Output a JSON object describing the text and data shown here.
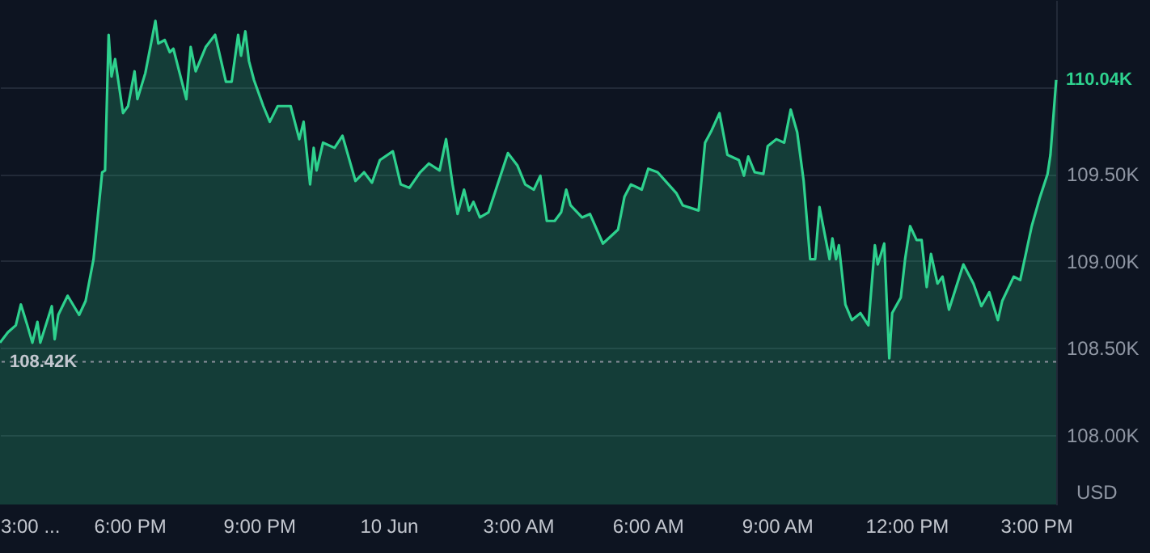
{
  "chart_data": {
    "type": "area",
    "ylabel": "USD",
    "x": [
      "--06-09T15:00",
      "--06-09T15:11",
      "--06-09T15:22",
      "--06-09T15:29",
      "--06-09T15:38",
      "--06-09T15:45",
      "--06-09T15:52",
      "--06-09T15:56",
      "--06-09T16:12",
      "--06-09T16:16",
      "--06-09T16:21",
      "--06-09T16:34",
      "--06-09T16:50",
      "--06-09T16:59",
      "--06-09T17:10",
      "--06-09T17:22",
      "--06-09T17:26",
      "--06-09T17:31",
      "--06-09T17:35",
      "--06-09T17:40",
      "--06-09T17:51",
      "--06-09T17:58",
      "--06-09T18:07",
      "--06-09T18:11",
      "--06-09T18:22",
      "--06-09T18:36",
      "--06-09T18:40",
      "--06-09T18:49",
      "--06-09T18:56",
      "--06-09T19:01",
      "--06-09T19:19",
      "--06-09T19:25",
      "--06-09T19:32",
      "--06-09T19:46",
      "--06-09T19:59",
      "--06-09T20:14",
      "--06-09T20:22",
      "--06-09T20:31",
      "--06-09T20:35",
      "--06-09T20:41",
      "--06-09T20:46",
      "--06-09T20:53",
      "--06-09T21:06",
      "--06-09T21:15",
      "--06-09T21:26",
      "--06-09T21:44",
      "--06-09T21:56",
      "--06-09T22:02",
      "--06-09T22:11",
      "--06-09T22:16",
      "--06-09T22:20",
      "--06-09T22:29",
      "--06-09T22:45",
      "--06-09T22:56",
      "--06-09T23:14",
      "--06-09T23:26",
      "--06-09T23:37",
      "--06-09T23:48",
      "--06-10T00:06",
      "--06-10T00:17",
      "--06-10T00:29",
      "--06-10T00:44",
      "--06-10T00:56",
      "--06-10T01:11",
      "--06-10T01:20",
      "--06-10T01:29",
      "--06-10T01:36",
      "--06-10T01:45",
      "--06-10T01:52",
      "--06-10T01:58",
      "--06-10T02:07",
      "--06-10T02:19",
      "--06-10T02:30",
      "--06-10T02:46",
      "--06-10T02:59",
      "--06-10T03:10",
      "--06-10T03:22",
      "--06-10T03:31",
      "--06-10T03:40",
      "--06-10T03:51",
      "--06-10T04:00",
      "--06-10T04:07",
      "--06-10T04:13",
      "--06-10T04:29",
      "--06-10T04:40",
      "--06-10T04:58",
      "--06-10T05:19",
      "--06-10T05:28",
      "--06-10T05:37",
      "--06-10T05:52",
      "--06-10T06:01",
      "--06-10T06:14",
      "--06-10T06:40",
      "--06-10T06:49",
      "--06-10T07:11",
      "--06-10T07:20",
      "--06-10T07:29",
      "--06-10T07:40",
      "--06-10T07:51",
      "--06-10T08:07",
      "--06-10T08:14",
      "--06-10T08:20",
      "--06-10T08:29",
      "--06-10T08:41",
      "--06-10T08:47",
      "--06-10T08:59",
      "--06-10T09:10",
      "--06-10T09:19",
      "--06-10T09:28",
      "--06-10T09:37",
      "--06-10T09:46",
      "--06-10T09:53",
      "--06-10T09:59",
      "--06-10T10:13",
      "--06-10T10:17",
      "--06-10T10:22",
      "--06-10T10:26",
      "--06-10T10:35",
      "--06-10T10:44",
      "--06-10T10:56",
      "--06-10T11:07",
      "--06-10T11:16",
      "--06-10T11:20",
      "--06-10T11:29",
      "--06-10T11:36",
      "--06-10T11:40",
      "--06-10T11:52",
      "--06-10T11:58",
      "--06-10T12:05",
      "--06-10T12:14",
      "--06-10T12:21",
      "--06-10T12:28",
      "--06-10T12:34",
      "--06-10T12:43",
      "--06-10T12:50",
      "--06-10T12:59",
      "--06-10T13:19",
      "--06-10T13:33",
      "--06-10T13:44",
      "--06-10T13:55",
      "--06-10T14:07",
      "--06-10T14:13",
      "--06-10T14:29",
      "--06-10T14:38",
      "--06-10T14:54",
      "--06-10T15:05",
      "--06-10T15:16",
      "--06-10T15:20",
      "--06-10T15:28"
    ],
    "series": [
      {
        "color": "#2ed18e",
        "values": [
          108.53,
          108.59,
          108.63,
          108.75,
          108.63,
          108.53,
          108.65,
          108.53,
          108.74,
          108.55,
          108.69,
          108.8,
          108.69,
          108.77,
          109.01,
          109.51,
          109.52,
          110.3,
          110.06,
          110.16,
          109.85,
          109.89,
          110.09,
          109.93,
          110.08,
          110.38,
          110.25,
          110.27,
          110.2,
          110.22,
          109.93,
          110.23,
          110.09,
          110.23,
          110.3,
          110.03,
          110.03,
          110.3,
          110.18,
          110.32,
          110.15,
          110.04,
          109.89,
          109.8,
          109.89,
          109.89,
          109.7,
          109.8,
          109.44,
          109.65,
          109.52,
          109.68,
          109.65,
          109.72,
          109.46,
          109.51,
          109.45,
          109.58,
          109.63,
          109.44,
          109.42,
          109.51,
          109.56,
          109.52,
          109.7,
          109.44,
          109.27,
          109.41,
          109.29,
          109.34,
          109.25,
          109.28,
          109.42,
          109.62,
          109.55,
          109.44,
          109.41,
          109.49,
          109.23,
          109.23,
          109.28,
          109.41,
          109.32,
          109.25,
          109.27,
          109.1,
          109.18,
          109.37,
          109.44,
          109.41,
          109.53,
          109.51,
          109.39,
          109.32,
          109.29,
          109.68,
          109.75,
          109.85,
          109.61,
          109.58,
          109.49,
          109.6,
          109.51,
          109.5,
          109.66,
          109.7,
          109.68,
          109.87,
          109.74,
          109.46,
          109.01,
          109.01,
          109.31,
          109.01,
          109.13,
          109.01,
          109.09,
          108.75,
          108.66,
          108.7,
          108.63,
          109.09,
          108.98,
          109.1,
          108.44,
          108.7,
          108.79,
          109.01,
          109.2,
          109.12,
          109.12,
          108.85,
          109.04,
          108.87,
          108.91,
          108.72,
          108.98,
          108.87,
          108.74,
          108.82,
          108.66,
          108.77,
          108.91,
          108.89,
          109.2,
          109.36,
          109.5,
          109.61,
          110.04
        ]
      }
    ],
    "xlim": [
      "--06-09T15:00",
      "--06-10T15:28"
    ],
    "ylim": [
      107.6,
      110.5
    ],
    "xticks": [
      {
        "value": "--06-09T15:00",
        "label": "3:00 ..."
      },
      {
        "value": "--06-09T18:00",
        "label": "6:00 PM"
      },
      {
        "value": "--06-09T21:00",
        "label": "9:00 PM"
      },
      {
        "value": "--06-10T00:00",
        "label": "10 Jun"
      },
      {
        "value": "--06-10T03:00",
        "label": "3:00 AM"
      },
      {
        "value": "--06-10T06:00",
        "label": "6:00 AM"
      },
      {
        "value": "--06-10T09:00",
        "label": "9:00 AM"
      },
      {
        "value": "--06-10T12:00",
        "label": "12:00 PM"
      },
      {
        "value": "--06-10T15:00",
        "label": "3:00 PM"
      }
    ],
    "yticks": [
      {
        "value": 108,
        "label": "108.00K"
      },
      {
        "value": 108.5,
        "label": "108.50K"
      },
      {
        "value": 109,
        "label": "109.00K"
      },
      {
        "value": 109.5,
        "label": "109.50K"
      },
      {
        "value": 110,
        "label": null
      }
    ],
    "grid": "y",
    "ref_lines": [
      {
        "axis": "y",
        "value": 108.42,
        "label": "108.42K",
        "color": "#8a909c",
        "line_style": "dotted"
      }
    ],
    "annotations": [
      {
        "text": "110.04K",
        "x": "--06-10T15:28",
        "y": 110.04
      }
    ]
  }
}
